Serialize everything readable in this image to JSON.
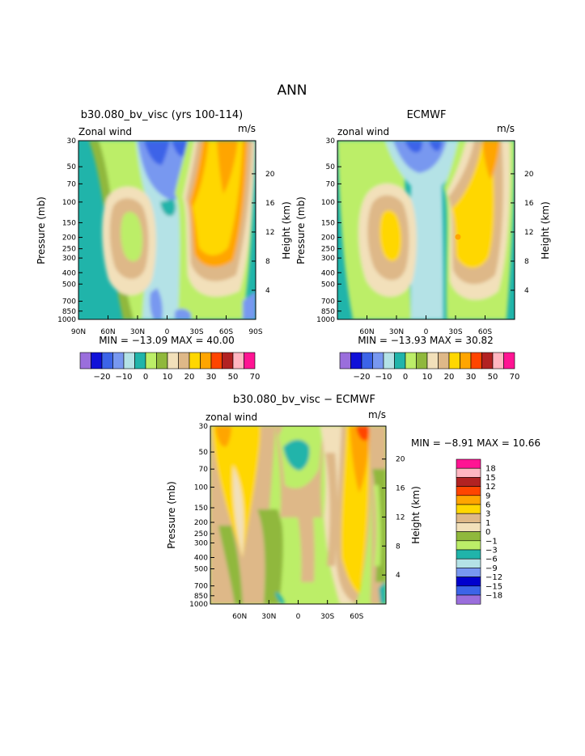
{
  "figure_title": "ANN",
  "units": "m/s",
  "palette": {
    "full": [
      "#9a6edc",
      "#1010d8",
      "#3c64e8",
      "#7898f0",
      "#b4e2e6",
      "#20b4aa",
      "#bcee68",
      "#90b83c",
      "#f2e0ba",
      "#deb888",
      "#ffd700",
      "#ffa500",
      "#ff4500",
      "#b22222",
      "#ffb6c1",
      "#ff1493"
    ],
    "diff": [
      "#9a6edc",
      "#3c64e8",
      "#0000cd",
      "#7898f0",
      "#b4e2e6",
      "#20b4aa",
      "#bcee68",
      "#90b83c",
      "#f2e0ba",
      "#deb888",
      "#ffd700",
      "#ffa500",
      "#ff4500",
      "#b22222",
      "#ffb6c1",
      "#ff1493"
    ]
  },
  "chart_data": [
    {
      "type": "heatmap",
      "title": "b30.080_bv_visc (yrs 100-114)",
      "field_label": "Zonal wind",
      "units": "m/s",
      "ylabel": "Pressure (mb)",
      "ylabel_right": "Height (km)",
      "x_ticks": [
        "90N",
        "60N",
        "30N",
        "0",
        "30S",
        "60S",
        "90S"
      ],
      "y_ticks": [
        "30",
        "50",
        "70",
        "100",
        "150",
        "200",
        "250",
        "300",
        "400",
        "500",
        "700",
        "850",
        "1000"
      ],
      "height_ticks": [
        "20",
        "16",
        "12",
        "8",
        "4"
      ],
      "stats": "MIN = −13.09   MAX =  40.00",
      "min": -13.09,
      "max": 40.0,
      "colorbar_labels": [
        "−20",
        "−10",
        "0",
        "10",
        "20",
        "30",
        "50",
        "70"
      ]
    },
    {
      "type": "heatmap",
      "title": "ECMWF",
      "field_label": "zonal wind",
      "units": "m/s",
      "ylabel": "Pressure (mb)",
      "ylabel_right": "Height (km)",
      "x_ticks": [
        "60N",
        "30N",
        "0",
        "30S",
        "60S"
      ],
      "y_ticks": [
        "30",
        "50",
        "70",
        "100",
        "150",
        "200",
        "250",
        "300",
        "400",
        "500",
        "700",
        "850",
        "1000"
      ],
      "height_ticks": [
        "20",
        "16",
        "12",
        "8",
        "4"
      ],
      "stats": "MIN = −13.93   MAX =  30.82",
      "min": -13.93,
      "max": 30.82,
      "colorbar_labels": [
        "−20",
        "−10",
        "0",
        "10",
        "20",
        "30",
        "50",
        "70"
      ]
    },
    {
      "type": "heatmap",
      "title": "b30.080_bv_visc − ECMWF",
      "field_label": "zonal wind",
      "units": "m/s",
      "ylabel": "Pressure (mb)",
      "ylabel_right": "Height (km)",
      "x_ticks": [
        "60N",
        "30N",
        "0",
        "30S",
        "60S"
      ],
      "y_ticks": [
        "30",
        "50",
        "70",
        "100",
        "150",
        "200",
        "250",
        "300",
        "400",
        "500",
        "700",
        "850",
        "1000"
      ],
      "height_ticks": [
        "20",
        "16",
        "12",
        "8",
        "4"
      ],
      "stats": "MIN =  −8.91   MAX =  10.66",
      "min": -8.91,
      "max": 10.66,
      "colorbar_labels": [
        "18",
        "15",
        "12",
        "9",
        "6",
        "3",
        "1",
        "0",
        "−1",
        "−3",
        "−6",
        "−9",
        "−12",
        "−15",
        "−18"
      ]
    }
  ]
}
